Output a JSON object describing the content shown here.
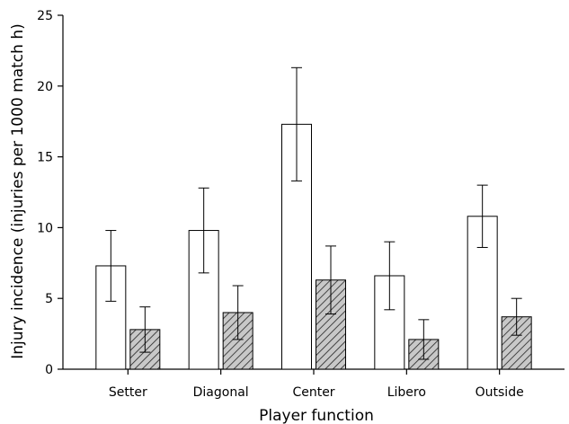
{
  "chart_data": {
    "type": "bar",
    "title": "",
    "xlabel": "Player function",
    "ylabel": "Injury incidence (injuries per 1000 match h)",
    "ylim": [
      0,
      25
    ],
    "yticks": [
      0,
      5,
      10,
      15,
      20,
      25
    ],
    "grid": false,
    "legend": "none",
    "categories": [
      "Setter",
      "Diagonal",
      "Center",
      "Libero",
      "Outside"
    ],
    "series": [
      {
        "fill": "open",
        "color": "#ffffff",
        "values": [
          7.3,
          9.8,
          17.3,
          6.6,
          10.8
        ],
        "error_low": [
          4.8,
          6.8,
          13.3,
          4.2,
          8.6
        ],
        "error_high": [
          9.8,
          12.8,
          21.3,
          9.0,
          13.0
        ]
      },
      {
        "fill": "hatched",
        "color": "#c8c8c8",
        "values": [
          2.8,
          4.0,
          6.3,
          2.1,
          3.7
        ],
        "error_low": [
          1.2,
          2.1,
          3.9,
          0.7,
          2.4
        ],
        "error_high": [
          4.4,
          5.9,
          8.7,
          3.5,
          5.0
        ]
      }
    ]
  }
}
